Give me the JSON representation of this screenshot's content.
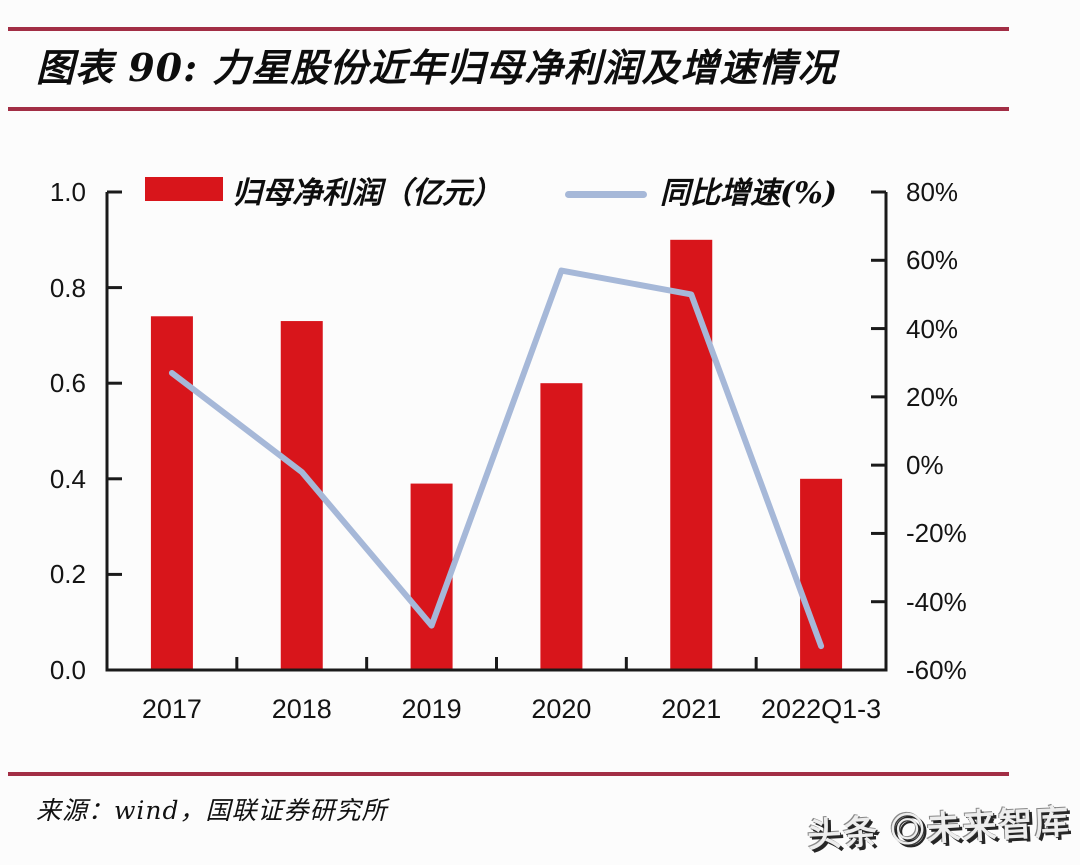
{
  "page": {
    "title": "图表 90:  力星股份近年归母净利润及增速情况",
    "source": "来源：wind，国联证券研究所",
    "watermark": "头条 ◎未来智库"
  },
  "colors": {
    "bar": "#d8151b",
    "line": "#a6b8d8",
    "rule": "#a22e45",
    "axis": "#1a1a1a",
    "text": "#141414"
  },
  "chart_data": {
    "type": "bar+line",
    "title": "力星股份近年归母净利润及增速情况",
    "categories": [
      "2017",
      "2018",
      "2019",
      "2020",
      "2021",
      "2022Q1-3"
    ],
    "series": [
      {
        "name": "归母净利润（亿元）",
        "type": "bar",
        "axis": "left",
        "color": "#d8151b",
        "values": [
          0.74,
          0.73,
          0.39,
          0.6,
          0.9,
          0.4
        ]
      },
      {
        "name": "同比增速(%)",
        "type": "line",
        "axis": "right",
        "color": "#a6b8d8",
        "values": [
          27,
          -2,
          -47,
          57,
          50,
          -53
        ]
      }
    ],
    "left_axis": {
      "min": 0.0,
      "max": 1.0,
      "ticks": [
        "1.0",
        "0.8",
        "0.6",
        "0.4",
        "0.2",
        "0.0"
      ]
    },
    "right_axis": {
      "min": -60,
      "max": 80,
      "ticks": [
        "80%",
        "60%",
        "40%",
        "20%",
        "0%",
        "-20%",
        "-40%",
        "-60%"
      ]
    },
    "legend": [
      {
        "label": "归母净利润（亿元）",
        "swatch": "bar"
      },
      {
        "label": "同比增速(%)",
        "swatch": "line"
      }
    ],
    "grid": false,
    "legend_position": "top"
  }
}
